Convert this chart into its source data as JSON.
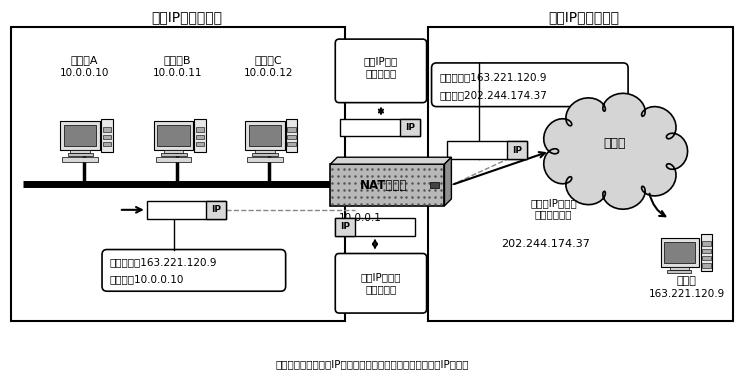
{
  "title_left": "私有IP地址的世界",
  "title_right": "全局IP地址的世界",
  "footer": "局域网内设置为私有IP地址，在与外部通信时被替换成全局IP地址。",
  "client_a_label": "客户端A",
  "client_a_ip": "10.0.0.10",
  "client_b_label": "客户端B",
  "client_b_ip": "10.0.0.11",
  "client_c_label": "客户端C",
  "client_c_ip": "10.0.0.12",
  "nat_label": "NAT路由器",
  "nat_ip": "10.0.0.1",
  "internet_label": "互联网",
  "server_label": "服务器",
  "server_ip": "163.221.120.9",
  "box_top_label": "转换IP首部\n中的源地址",
  "box_bottom_label": "转换IP首部中\n的目标地址",
  "packet_left_text1": "目标地址：163.221.120.9",
  "packet_left_text2": "源地址：10.0.0.10",
  "packet_right_text1": "目标地址：163.221.120.9",
  "packet_right_text2": "源地址：202.244.174.37",
  "global_ip_label": "202.244.174.37",
  "comm_label": "与全局IP地址的\n设备之间通信",
  "bg_color": "#ffffff",
  "region_bg": "#f0f0f0",
  "nat_color": "#c0c0c0"
}
